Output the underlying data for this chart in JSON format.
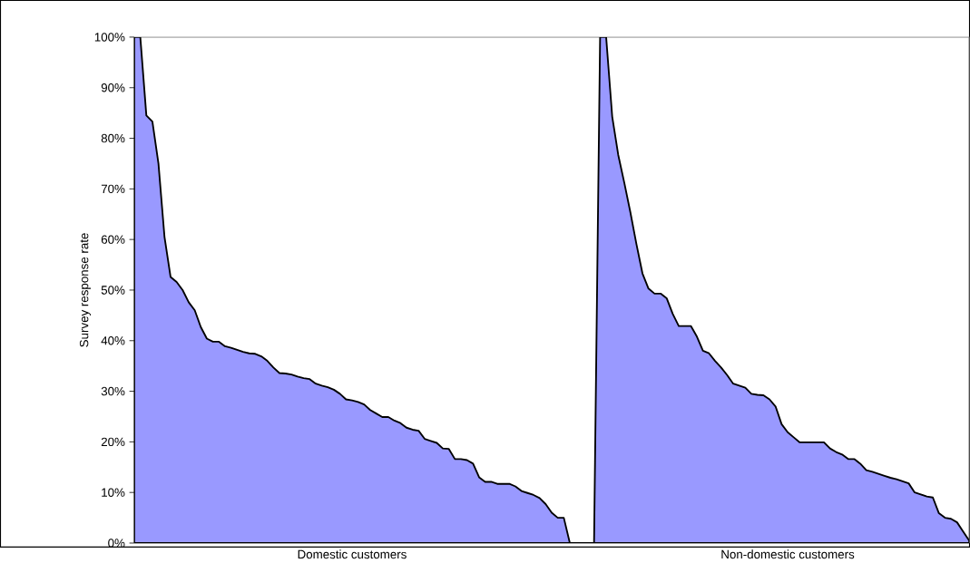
{
  "chart_data": {
    "type": "area",
    "ylabel": "Survey response rate",
    "categories": [
      null,
      null,
      null,
      null,
      null,
      null,
      null,
      null,
      null,
      null,
      null,
      null,
      null,
      null,
      null,
      null,
      null,
      null,
      null,
      null,
      null,
      null,
      null,
      null,
      null,
      null,
      null,
      null,
      null,
      null,
      null,
      null,
      null,
      null,
      null,
      null,
      "Domestic customers",
      null,
      null,
      null,
      null,
      null,
      null,
      null,
      null,
      null,
      null,
      null,
      null,
      null,
      null,
      null,
      null,
      null,
      null,
      null,
      null,
      null,
      null,
      null,
      null,
      null,
      null,
      null,
      null,
      null,
      null,
      null,
      null,
      null,
      null,
      null,
      null,
      null,
      null,
      null,
      null,
      null,
      null,
      null,
      null,
      null,
      null,
      null,
      null,
      null,
      null,
      null,
      null,
      null,
      null,
      null,
      null,
      null,
      null,
      null,
      null,
      null,
      null,
      null,
      null,
      null,
      null,
      null,
      null,
      null,
      null,
      null,
      "Non-domestic customers",
      null,
      null,
      null,
      null,
      null,
      null,
      null,
      null,
      null,
      null,
      null,
      null,
      null,
      null,
      null,
      null,
      null,
      null,
      null,
      null,
      null,
      null,
      null,
      null,
      null,
      null,
      null,
      null,
      null,
      null
    ],
    "values": [
      100,
      100,
      84.5,
      83.3,
      75.0,
      60.5,
      52.6,
      51.6,
      50.0,
      47.6,
      46.0,
      42.7,
      40.4,
      39.8,
      39.8,
      38.9,
      38.6,
      38.2,
      37.8,
      37.5,
      37.4,
      36.9,
      36.0,
      34.7,
      33.6,
      33.5,
      33.3,
      32.9,
      32.6,
      32.4,
      31.5,
      31.1,
      30.8,
      30.3,
      29.5,
      28.4,
      28.2,
      27.9,
      27.4,
      26.3,
      25.6,
      24.9,
      24.9,
      24.2,
      23.7,
      22.8,
      22.4,
      22.2,
      20.6,
      20.2,
      19.8,
      18.7,
      18.6,
      16.6,
      16.6,
      16.4,
      15.7,
      13.0,
      12.1,
      12.1,
      11.7,
      11.7,
      11.7,
      11.2,
      10.3,
      9.9,
      9.5,
      8.9,
      7.7,
      6.0,
      5.0,
      5.0,
      0,
      0,
      0,
      0,
      0,
      100,
      100,
      84.3,
      76.7,
      71.2,
      65.4,
      59.1,
      53.3,
      50.3,
      49.3,
      49.3,
      48.4,
      45.3,
      42.9,
      42.9,
      42.9,
      40.8,
      38.0,
      37.5,
      36.0,
      34.7,
      33.2,
      31.5,
      31.1,
      30.7,
      29.5,
      29.3,
      29.2,
      28.4,
      27.0,
      23.5,
      21.9,
      20.9,
      19.9,
      19.9,
      19.9,
      19.9,
      19.9,
      18.7,
      18.0,
      17.5,
      16.6,
      16.6,
      15.7,
      14.4,
      14.1,
      13.7,
      13.3,
      12.9,
      12.6,
      12.2,
      11.8,
      10.0,
      9.6,
      9.2,
      9.0,
      5.9,
      5.0,
      4.8,
      4.1,
      2.3,
      0.5
    ],
    "color": "#9999ff",
    "ylim": [
      0,
      100
    ],
    "yticks": [
      {
        "value": 0,
        "label": "0%"
      },
      {
        "value": 10,
        "label": "10%"
      },
      {
        "value": 20,
        "label": "20%"
      },
      {
        "value": 30,
        "label": "30%"
      },
      {
        "value": 40,
        "label": "40%"
      },
      {
        "value": 50,
        "label": "50%"
      },
      {
        "value": 60,
        "label": "60%"
      },
      {
        "value": 70,
        "label": "70%"
      },
      {
        "value": 80,
        "label": "80%"
      },
      {
        "value": 90,
        "label": "90%"
      },
      {
        "value": 100,
        "label": "100%"
      }
    ]
  }
}
